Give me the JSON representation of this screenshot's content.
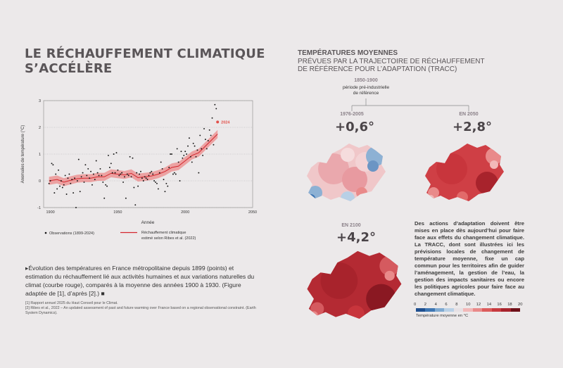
{
  "left": {
    "title_line1": "LE RÉCHAUFFEMENT CLIMATIQUE",
    "title_line2": "S’ACCÉLÈRE",
    "caption": "▸Évolution des températures en France métropolitaine depuis 1899 (points) et estimation du réchauffement lié aux activités humaines et aux variations naturelles du climat (courbe rouge), comparés à la moyenne des années 1900 à 1930. (Figure adaptée de [1], d’après [2].) ■",
    "ref1": "[1] Rapport annuel 2025 du Haut Conseil pour le Climat.",
    "ref2": "[2] Ribes et al., 2022 – An updated assessment of past and future warming over France based on a regional observational constraint. (Earth System Dynamics)."
  },
  "chart_data": {
    "type": "scatter",
    "xlabel": "Année",
    "ylabel": "Anomalies de température (°C)",
    "xlim": [
      1895,
      2050
    ],
    "ylim": [
      -1,
      3
    ],
    "xticks": [
      1900,
      1950,
      2000,
      2050
    ],
    "yticks": [
      -1,
      0,
      1,
      2,
      3
    ],
    "annotation": "2024",
    "annotation_value": 2.2,
    "legend": {
      "observations": "Observations (1899-2024)",
      "trend_line1": "Réchauffement climatique",
      "trend_line2": "estimé selon Ribes et al. (2022)"
    },
    "observations": [
      [
        1899,
        -0.1
      ],
      [
        1900,
        0.0
      ],
      [
        1901,
        0.65
      ],
      [
        1902,
        0.6
      ],
      [
        1903,
        -0.45
      ],
      [
        1904,
        0.25
      ],
      [
        1905,
        -0.3
      ],
      [
        1906,
        0.4
      ],
      [
        1907,
        -0.2
      ],
      [
        1908,
        0.0
      ],
      [
        1909,
        -0.25
      ],
      [
        1910,
        -0.15
      ],
      [
        1911,
        0.2
      ],
      [
        1912,
        -0.5
      ],
      [
        1913,
        0.1
      ],
      [
        1914,
        0.25
      ],
      [
        1915,
        -0.1
      ],
      [
        1916,
        0.05
      ],
      [
        1917,
        -0.45
      ],
      [
        1918,
        0.1
      ],
      [
        1919,
        -1.0
      ],
      [
        1920,
        0.0
      ],
      [
        1921,
        0.8
      ],
      [
        1922,
        -0.4
      ],
      [
        1923,
        0.15
      ],
      [
        1924,
        0.3
      ],
      [
        1925,
        -0.05
      ],
      [
        1926,
        0.6
      ],
      [
        1927,
        0.2
      ],
      [
        1928,
        0.45
      ],
      [
        1929,
        0.1
      ],
      [
        1930,
        0.35
      ],
      [
        1931,
        -0.15
      ],
      [
        1932,
        0.25
      ],
      [
        1933,
        0.05
      ],
      [
        1934,
        0.75
      ],
      [
        1935,
        0.3
      ],
      [
        1936,
        0.2
      ],
      [
        1937,
        0.45
      ],
      [
        1938,
        0.2
      ],
      [
        1939,
        -0.05
      ],
      [
        1940,
        -0.65
      ],
      [
        1941,
        -0.15
      ],
      [
        1942,
        -0.2
      ],
      [
        1943,
        0.95
      ],
      [
        1944,
        0.5
      ],
      [
        1945,
        0.65
      ],
      [
        1946,
        0.3
      ],
      [
        1947,
        1.0
      ],
      [
        1948,
        0.3
      ],
      [
        1949,
        1.05
      ],
      [
        1950,
        0.4
      ],
      [
        1951,
        0.2
      ],
      [
        1952,
        0.25
      ],
      [
        1953,
        0.3
      ],
      [
        1954,
        -0.05
      ],
      [
        1955,
        0.15
      ],
      [
        1956,
        -0.65
      ],
      [
        1957,
        0.25
      ],
      [
        1958,
        0.2
      ],
      [
        1959,
        0.9
      ],
      [
        1960,
        0.15
      ],
      [
        1961,
        0.85
      ],
      [
        1962,
        -0.25
      ],
      [
        1963,
        -0.9
      ],
      [
        1964,
        0.3
      ],
      [
        1965,
        -0.2
      ],
      [
        1966,
        0.25
      ],
      [
        1967,
        0.35
      ],
      [
        1968,
        0.1
      ],
      [
        1969,
        0.0
      ],
      [
        1970,
        0.15
      ],
      [
        1971,
        0.1
      ],
      [
        1972,
        0.05
      ],
      [
        1973,
        0.2
      ],
      [
        1974,
        0.3
      ],
      [
        1975,
        0.35
      ],
      [
        1976,
        0.25
      ],
      [
        1977,
        0.0
      ],
      [
        1978,
        -0.05
      ],
      [
        1979,
        -0.1
      ],
      [
        1980,
        -0.3
      ],
      [
        1981,
        0.3
      ],
      [
        1982,
        0.7
      ],
      [
        1983,
        0.45
      ],
      [
        1984,
        0.05
      ],
      [
        1985,
        -0.4
      ],
      [
        1986,
        -0.1
      ],
      [
        1987,
        -0.2
      ],
      [
        1988,
        0.5
      ],
      [
        1989,
        1.0
      ],
      [
        1990,
        1.0
      ],
      [
        1991,
        0.25
      ],
      [
        1992,
        0.3
      ],
      [
        1993,
        0.25
      ],
      [
        1994,
        1.2
      ],
      [
        1995,
        0.7
      ],
      [
        1996,
        0.0
      ],
      [
        1997,
        1.1
      ],
      [
        1998,
        0.85
      ],
      [
        1999,
        0.95
      ],
      [
        2000,
        1.1
      ],
      [
        2001,
        1.0
      ],
      [
        2002,
        1.3
      ],
      [
        2003,
        1.6
      ],
      [
        2004,
        0.9
      ],
      [
        2005,
        0.7
      ],
      [
        2006,
        1.4
      ],
      [
        2007,
        1.3
      ],
      [
        2008,
        0.9
      ],
      [
        2009,
        1.15
      ],
      [
        2010,
        0.3
      ],
      [
        2011,
        1.7
      ],
      [
        2012,
        1.2
      ],
      [
        2013,
        0.95
      ],
      [
        2014,
        1.95
      ],
      [
        2015,
        1.55
      ],
      [
        2016,
        1.2
      ],
      [
        2017,
        1.5
      ],
      [
        2018,
        1.9
      ],
      [
        2019,
        1.7
      ],
      [
        2020,
        2.35
      ],
      [
        2021,
        1.35
      ],
      [
        2022,
        2.85
      ],
      [
        2023,
        2.7
      ],
      [
        2024,
        2.2
      ]
    ],
    "trend": [
      [
        1899,
        0.0
      ],
      [
        1905,
        0.05
      ],
      [
        1910,
        -0.05
      ],
      [
        1915,
        0.02
      ],
      [
        1920,
        0.08
      ],
      [
        1925,
        0.1
      ],
      [
        1930,
        0.1
      ],
      [
        1935,
        0.15
      ],
      [
        1940,
        0.15
      ],
      [
        1945,
        0.28
      ],
      [
        1950,
        0.25
      ],
      [
        1955,
        0.22
      ],
      [
        1960,
        0.28
      ],
      [
        1965,
        0.12
      ],
      [
        1970,
        0.15
      ],
      [
        1975,
        0.18
      ],
      [
        1980,
        0.25
      ],
      [
        1985,
        0.35
      ],
      [
        1990,
        0.5
      ],
      [
        1995,
        0.55
      ],
      [
        2000,
        0.75
      ],
      [
        2005,
        0.95
      ],
      [
        2010,
        1.05
      ],
      [
        2015,
        1.3
      ],
      [
        2020,
        1.55
      ],
      [
        2024,
        1.75
      ]
    ],
    "trend_band": 0.15
  },
  "right": {
    "title_bold": "TEMPÉRATURES MOYENNES",
    "title_line2": "PRÉVUES PAR LA TRAJECTOIRE DE RÉCHAUFFEMENT",
    "title_line3": "DE RÉFÉRENCE POUR L’ADAPTATION (TRACC)",
    "ref_period": "1850-1900",
    "ref_label_1": "période pré-industrielle",
    "ref_label_2": "de référence",
    "periods": [
      {
        "label": "1976-2005",
        "value": "+0,6°"
      },
      {
        "label": "EN 2050",
        "value": "+2,8°"
      },
      {
        "label": "EN 2100",
        "value": "+4,2°"
      }
    ],
    "description": "Des actions d’adaptation doivent être mises en place dès aujourd’hui pour faire face aux effets du changement climatique. La TRACC, dont sont illustrées ici les prévisions locales de changement de température moyenne, fixe un cap commun pour les territoires afin de guider l’aménagement, la gestion de l’eau, la gestion des impacts sanitaires ou encore les politiques agricoles pour faire face au changement climatique.",
    "colorbar": {
      "ticks": [
        "0",
        "2",
        "4",
        "6",
        "8",
        "10",
        "12",
        "14",
        "16",
        "18",
        "20"
      ],
      "label": "Température moyenne en °C",
      "colors": [
        "#1f4f8f",
        "#3f76b3",
        "#7ea9d1",
        "#b8d0e6",
        "#e6e0e4",
        "#f2b8b8",
        "#e98a8a",
        "#dc5c5c",
        "#c73a3f",
        "#a8232c",
        "#6e0f18"
      ]
    }
  }
}
